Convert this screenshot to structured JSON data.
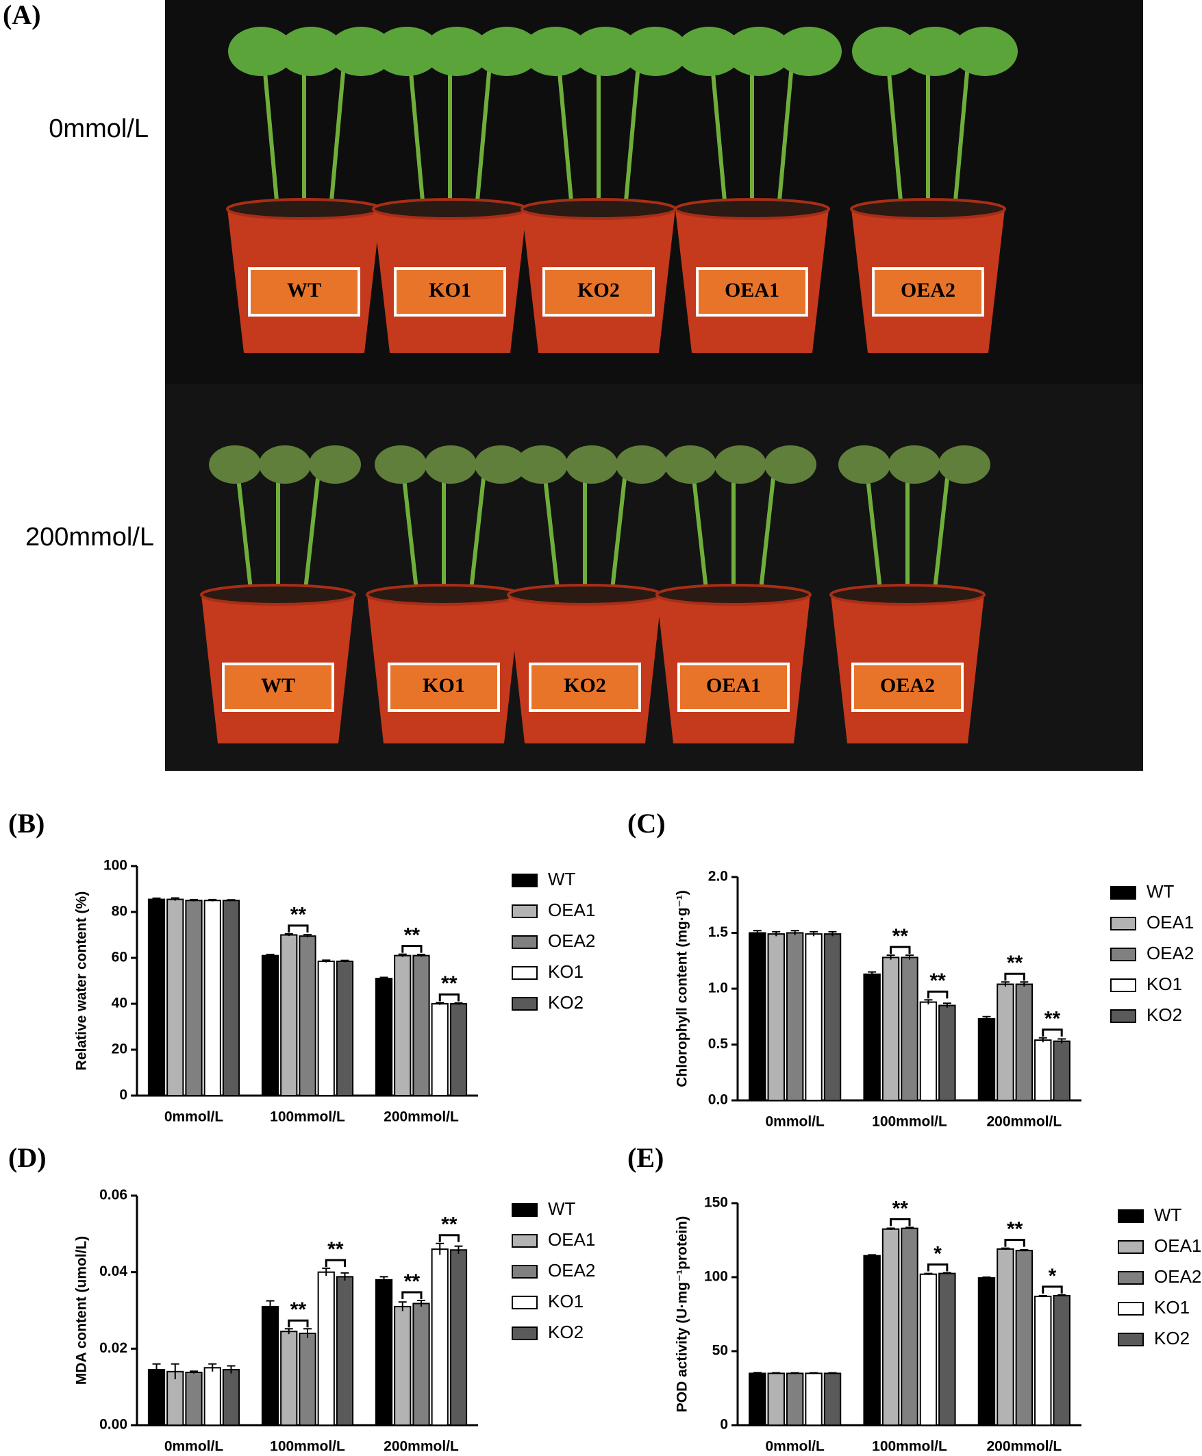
{
  "panel_A": {
    "label": "(A)",
    "rows": [
      {
        "label": "0mmol/L",
        "pots": [
          "WT",
          "KO1",
          "KO2",
          "OEA1",
          "OEA2"
        ]
      },
      {
        "label": "200mmol/L",
        "pots": [
          "WT",
          "KO1",
          "KO2",
          "OEA1",
          "OEA2"
        ]
      }
    ]
  },
  "chart_data": [
    {
      "type": "bar",
      "panel_label": "(B)",
      "y_label": "Relative water content (%)",
      "categories": [
        "0mmol/L",
        "100mmol/L",
        "200mmol/L"
      ],
      "series": [
        {
          "name": "WT",
          "color": "#000000",
          "values": [
            85.5,
            61,
            51
          ],
          "errors": [
            0.5,
            0.5,
            0.5
          ]
        },
        {
          "name": "OEA1",
          "color": "#b3b3b3",
          "values": [
            85.5,
            70,
            61
          ],
          "errors": [
            0.6,
            0.5,
            0.6
          ]
        },
        {
          "name": "OEA2",
          "color": "#808080",
          "values": [
            85,
            69.5,
            61
          ],
          "errors": [
            0.4,
            0.6,
            0.5
          ]
        },
        {
          "name": "KO1",
          "color": "#ffffff",
          "values": [
            85,
            58.5,
            40
          ],
          "errors": [
            0.4,
            0.5,
            0.5
          ]
        },
        {
          "name": "KO2",
          "color": "#5a5a5a",
          "values": [
            85,
            58.5,
            40
          ],
          "errors": [
            0.3,
            0.4,
            0.4
          ]
        }
      ],
      "ylim": [
        0,
        100
      ],
      "yticks": [
        0,
        20,
        40,
        60,
        80,
        100
      ],
      "annotations": [
        {
          "label": "**",
          "category": "100mmol/L",
          "between": [
            "OEA1",
            "OEA2"
          ]
        },
        {
          "label": "**",
          "category": "200mmol/L",
          "between": [
            "OEA1",
            "OEA2"
          ]
        },
        {
          "label": "**",
          "category": "200mmol/L",
          "between": [
            "KO1",
            "KO2"
          ]
        }
      ]
    },
    {
      "type": "bar",
      "panel_label": "(C)",
      "y_label": "Chlorophyll content (mg·g⁻¹)",
      "categories": [
        "0mmol/L",
        "100mmol/L",
        "200mmol/L"
      ],
      "series": [
        {
          "name": "WT",
          "color": "#000000",
          "values": [
            1.5,
            1.13,
            0.73
          ],
          "errors": [
            0.02,
            0.02,
            0.02
          ]
        },
        {
          "name": "OEA1",
          "color": "#b3b3b3",
          "values": [
            1.49,
            1.28,
            1.04
          ],
          "errors": [
            0.02,
            0.02,
            0.02
          ]
        },
        {
          "name": "OEA2",
          "color": "#808080",
          "values": [
            1.5,
            1.28,
            1.04
          ],
          "errors": [
            0.02,
            0.02,
            0.02
          ]
        },
        {
          "name": "KO1",
          "color": "#ffffff",
          "values": [
            1.49,
            0.88,
            0.54
          ],
          "errors": [
            0.02,
            0.02,
            0.02
          ]
        },
        {
          "name": "KO2",
          "color": "#5a5a5a",
          "values": [
            1.49,
            0.85,
            0.53
          ],
          "errors": [
            0.02,
            0.02,
            0.02
          ]
        }
      ],
      "ylim": [
        0,
        2.0
      ],
      "yticks": [
        {
          "value": 0,
          "label": "0.0"
        },
        {
          "value": 0.5,
          "label": "0.5"
        },
        {
          "value": 1,
          "label": "1.0"
        },
        {
          "value": 1.5,
          "label": "1.5"
        },
        {
          "value": 2,
          "label": "2.0"
        }
      ],
      "annotations": [
        {
          "label": "**",
          "category": "100mmol/L",
          "between": [
            "OEA1",
            "OEA2"
          ]
        },
        {
          "label": "**",
          "category": "100mmol/L",
          "between": [
            "KO1",
            "KO2"
          ]
        },
        {
          "label": "**",
          "category": "200mmol/L",
          "between": [
            "OEA1",
            "OEA2"
          ]
        },
        {
          "label": "**",
          "category": "200mmol/L",
          "between": [
            "KO1",
            "KO2"
          ]
        }
      ]
    },
    {
      "type": "bar",
      "panel_label": "(D)",
      "y_label": "MDA content (umol/L)",
      "categories": [
        "0mmol/L",
        "100mmol/L",
        "200mmol/L"
      ],
      "series": [
        {
          "name": "WT",
          "color": "#000000",
          "values": [
            0.0145,
            0.031,
            0.038
          ],
          "errors": [
            0.0015,
            0.0015,
            0.0008
          ]
        },
        {
          "name": "OEA1",
          "color": "#b3b3b3",
          "values": [
            0.014,
            0.0245,
            0.031
          ],
          "errors": [
            0.002,
            0.0007,
            0.0012
          ]
        },
        {
          "name": "OEA2",
          "color": "#808080",
          "values": [
            0.0138,
            0.024,
            0.0318
          ],
          "errors": [
            0.0003,
            0.0012,
            0.0008
          ]
        },
        {
          "name": "KO1",
          "color": "#ffffff",
          "values": [
            0.015,
            0.04,
            0.046
          ],
          "errors": [
            0.001,
            0.001,
            0.0015
          ]
        },
        {
          "name": "KO2",
          "color": "#5a5a5a",
          "values": [
            0.0145,
            0.0388,
            0.0458
          ],
          "errors": [
            0.001,
            0.001,
            0.001
          ]
        }
      ],
      "ylim": [
        0,
        0.06
      ],
      "yticks": [
        {
          "value": 0,
          "label": "0.00"
        },
        {
          "value": 0.02,
          "label": "0.02"
        },
        {
          "value": 0.04,
          "label": "0.04"
        },
        {
          "value": 0.06,
          "label": "0.06"
        }
      ],
      "annotations": [
        {
          "label": "**",
          "category": "100mmol/L",
          "between": [
            "OEA1",
            "OEA2"
          ]
        },
        {
          "label": "**",
          "category": "100mmol/L",
          "between": [
            "KO1",
            "KO2"
          ]
        },
        {
          "label": "**",
          "category": "200mmol/L",
          "between": [
            "OEA1",
            "OEA2"
          ]
        },
        {
          "label": "**",
          "category": "200mmol/L",
          "between": [
            "KO1",
            "KO2"
          ]
        }
      ]
    },
    {
      "type": "bar",
      "panel_label": "(E)",
      "y_label": "POD activity (U·mg⁻¹protein)",
      "categories": [
        "0mmol/L",
        "100mmol/L",
        "200mmol/L"
      ],
      "series": [
        {
          "name": "WT",
          "color": "#000000",
          "values": [
            35,
            114.5,
            99.5
          ],
          "errors": [
            0.5,
            0.6,
            0.5
          ]
        },
        {
          "name": "OEA1",
          "color": "#b3b3b3",
          "values": [
            35,
            132.5,
            119
          ],
          "errors": [
            0.4,
            0.6,
            0.6
          ]
        },
        {
          "name": "OEA2",
          "color": "#808080",
          "values": [
            35,
            133,
            118
          ],
          "errors": [
            0.4,
            0.6,
            0.5
          ]
        },
        {
          "name": "KO1",
          "color": "#ffffff",
          "values": [
            35,
            102,
            87
          ],
          "errors": [
            0.4,
            0.5,
            0.5
          ]
        },
        {
          "name": "KO2",
          "color": "#5a5a5a",
          "values": [
            35,
            102.5,
            87.5
          ],
          "errors": [
            0.4,
            0.5,
            0.5
          ]
        }
      ],
      "ylim": [
        0,
        150
      ],
      "yticks": [
        0,
        50,
        100,
        150
      ],
      "annotations": [
        {
          "label": "**",
          "category": "100mmol/L",
          "between": [
            "OEA1",
            "OEA2"
          ]
        },
        {
          "label": "*",
          "category": "100mmol/L",
          "between": [
            "KO1",
            "KO2"
          ]
        },
        {
          "label": "**",
          "category": "200mmol/L",
          "between": [
            "OEA1",
            "OEA2"
          ]
        },
        {
          "label": "*",
          "category": "200mmol/L",
          "between": [
            "KO1",
            "KO2"
          ]
        }
      ]
    }
  ]
}
